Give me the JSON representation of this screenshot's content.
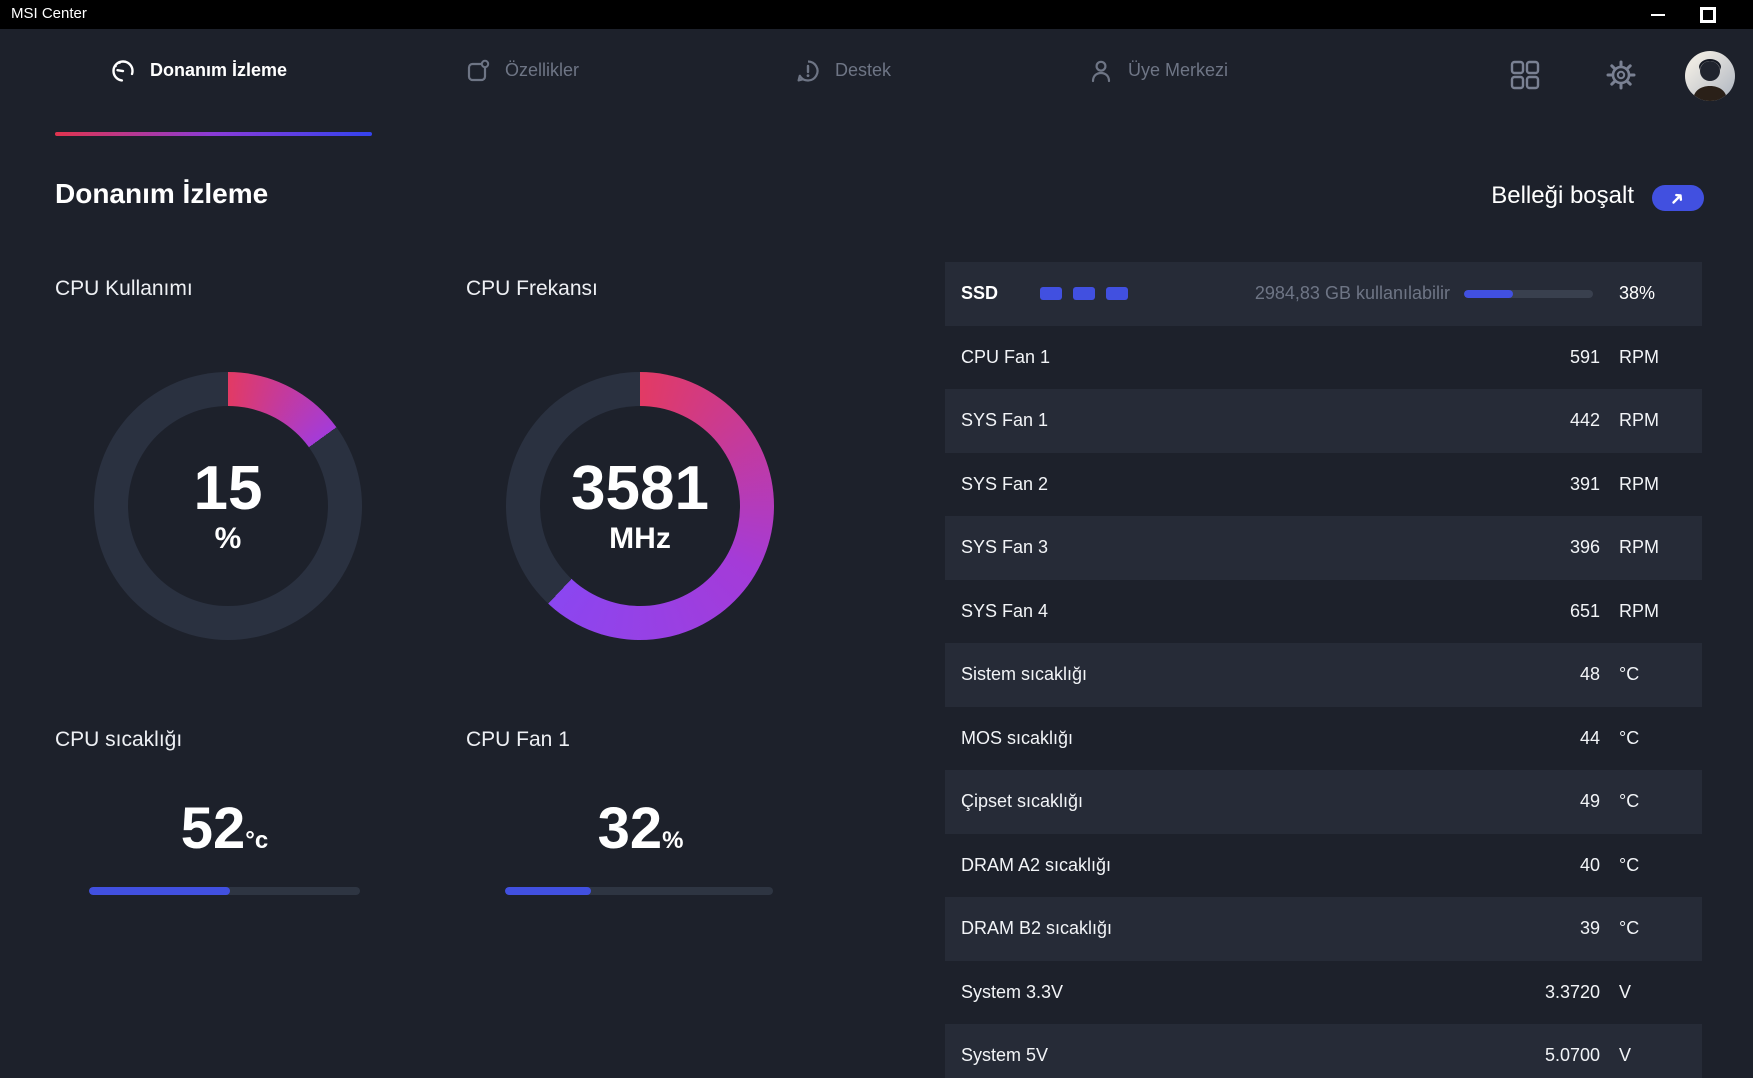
{
  "window": {
    "title": "MSI Center"
  },
  "nav": {
    "tabs": [
      {
        "label": "Donanım İzleme",
        "active": true
      },
      {
        "label": "Özellikler",
        "active": false
      },
      {
        "label": "Destek",
        "active": false
      },
      {
        "label": "Üye Merkezi",
        "active": false
      }
    ]
  },
  "page": {
    "title": "Donanım İzleme",
    "free_memory_label": "Belleği boşalt"
  },
  "gauges": [
    {
      "label": "CPU Kullanımı",
      "value": "15",
      "unit": "%",
      "percent": 15
    },
    {
      "label": "CPU Frekansı",
      "value": "3581",
      "unit": "MHz",
      "percent": 62
    }
  ],
  "meters": [
    {
      "label": "CPU sıcaklığı",
      "value": "52",
      "unit": "°c",
      "percent": 52
    },
    {
      "label": "CPU Fan 1",
      "value": "32",
      "unit": "%",
      "percent": 32
    }
  ],
  "ssd": {
    "label": "SSD",
    "available": "2984,83 GB kullanılabilir",
    "percent": 38,
    "percent_label": "38%"
  },
  "sensors": [
    {
      "label": "CPU Fan 1",
      "value": "591",
      "unit": "RPM"
    },
    {
      "label": "SYS Fan 1",
      "value": "442",
      "unit": "RPM"
    },
    {
      "label": "SYS Fan 2",
      "value": "391",
      "unit": "RPM"
    },
    {
      "label": "SYS Fan 3",
      "value": "396",
      "unit": "RPM"
    },
    {
      "label": "SYS Fan 4",
      "value": "651",
      "unit": "RPM"
    },
    {
      "label": "Sistem sıcaklığı",
      "value": "48",
      "unit": "°C"
    },
    {
      "label": "MOS sıcaklığı",
      "value": "44",
      "unit": "°C"
    },
    {
      "label": "Çipset sıcaklığı",
      "value": "49",
      "unit": "°C"
    },
    {
      "label": "DRAM A2 sıcaklığı",
      "value": "40",
      "unit": "°C"
    },
    {
      "label": "DRAM B2 sıcaklığı",
      "value": "39",
      "unit": "°C"
    },
    {
      "label": "System 3.3V",
      "value": "3.3720",
      "unit": "V"
    },
    {
      "label": "System 5V",
      "value": "5.0700",
      "unit": "V"
    }
  ],
  "colors": {
    "accent": "#4150e0",
    "arc_start": "#e23a64",
    "arc_mid": "#a43bd8",
    "arc_end": "#8b46f0",
    "gauge_track": "#2a3140"
  }
}
